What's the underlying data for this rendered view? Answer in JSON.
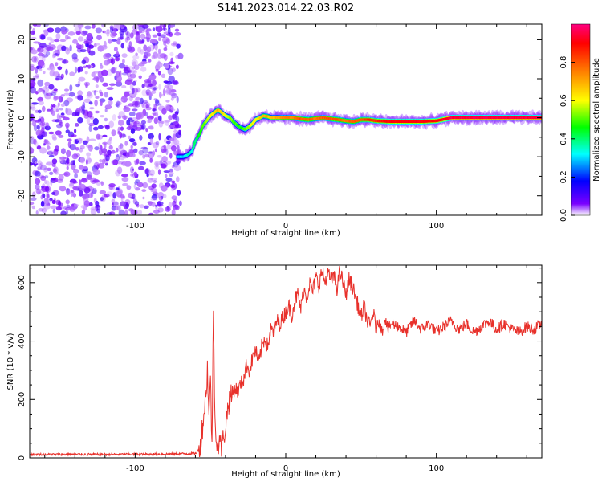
{
  "title": "S141.2023.014.22.03.R02",
  "chart_data": [
    {
      "type": "heatmap",
      "xlabel": "Height of straight line (km)",
      "ylabel": "Frequency (Hz)",
      "xlim": [
        -170,
        170
      ],
      "ylim": [
        -25,
        24
      ],
      "x_ticks": [
        -100,
        0,
        100
      ],
      "y_ticks": [
        -20,
        -10,
        0,
        10,
        20
      ],
      "noise_region_x": [
        -170,
        -73
      ],
      "ridge_x": [
        -72,
        -68,
        -65,
        -62,
        -60,
        -57,
        -55,
        -52,
        -50,
        -47,
        -45,
        -43,
        -40,
        -37,
        -35,
        -32,
        -30,
        -27,
        -25,
        -22,
        -20,
        -17,
        -15,
        -12,
        -10,
        -7,
        -5,
        -2,
        0,
        5,
        10,
        15,
        20,
        25,
        30,
        35,
        40,
        45,
        50,
        55,
        60,
        70,
        80,
        90,
        100,
        110,
        120,
        130,
        140,
        150,
        160,
        170
      ],
      "ridge_freq": [
        -10,
        -10,
        -9.5,
        -8.5,
        -6,
        -4,
        -2,
        -0.5,
        0.5,
        1.5,
        2,
        1.5,
        0.5,
        0,
        -1,
        -2,
        -2.5,
        -3,
        -2.5,
        -1.5,
        -0.5,
        0,
        0.5,
        0.3,
        0,
        0,
        0,
        0,
        0,
        0,
        -0.3,
        -0.5,
        -0.2,
        0,
        -0.3,
        -0.5,
        -0.8,
        -1,
        -0.5,
        -0.5,
        -0.8,
        -1,
        -1,
        -1,
        -0.8,
        0,
        0,
        0,
        0,
        0,
        0,
        0
      ],
      "ridge_amplitude": [
        0.3,
        0.3,
        0.35,
        0.35,
        0.4,
        0.45,
        0.5,
        0.55,
        0.6,
        0.65,
        0.7,
        0.65,
        0.6,
        0.55,
        0.5,
        0.5,
        0.45,
        0.5,
        0.55,
        0.6,
        0.6,
        0.65,
        0.7,
        0.7,
        0.65,
        0.7,
        0.7,
        0.75,
        0.75,
        0.75,
        0.8,
        0.8,
        0.75,
        0.8,
        0.8,
        0.8,
        0.75,
        0.8,
        0.8,
        0.85,
        0.85,
        0.9,
        0.9,
        0.9,
        0.9,
        0.95,
        0.95,
        0.95,
        0.95,
        0.95,
        0.95,
        0.95
      ],
      "colorbar": {
        "label": "Normalized spectral amplitude",
        "range": [
          0,
          1
        ],
        "ticks": [
          "0.0",
          "0.2",
          "0.4",
          "0.6",
          "0.8"
        ],
        "colormap": "hsv-rainbow",
        "stops": [
          "#ffffff",
          "#7a00ff",
          "#0000ff",
          "#00ffff",
          "#00ff00",
          "#ffff00",
          "#ff8000",
          "#ff0000",
          "#ff0080"
        ]
      }
    },
    {
      "type": "line",
      "xlabel": "Height of straight line (km)",
      "ylabel": "SNR (10 * v/v)",
      "xlim": [
        -170,
        170
      ],
      "ylim": [
        0,
        660
      ],
      "x_ticks": [
        -100,
        0,
        100
      ],
      "y_ticks": [
        0,
        200,
        400,
        600
      ],
      "color": "#e8312b",
      "series": [
        {
          "x": [
            -170,
            -120,
            -80,
            -60,
            -57,
            -55,
            -53,
            -52,
            -51,
            -50,
            -49,
            -48,
            -47,
            -46,
            -45,
            -44,
            -43,
            -42,
            -41,
            -40,
            -38,
            -36,
            -34,
            -32,
            -30,
            -28,
            -26,
            -24,
            -22,
            -20,
            -18,
            -16,
            -14,
            -12,
            -10,
            -8,
            -6,
            -4,
            -2,
            0,
            2,
            4,
            6,
            8,
            10,
            12,
            14,
            16,
            18,
            20,
            22,
            24,
            26,
            28,
            30,
            32,
            34,
            36,
            38,
            40,
            42,
            44,
            46,
            48,
            50,
            52,
            54,
            56,
            58,
            60,
            62,
            64,
            66,
            68,
            70,
            75,
            80,
            85,
            90,
            95,
            100,
            105,
            110,
            115,
            120,
            125,
            130,
            135,
            140,
            145,
            150,
            155,
            160,
            165,
            170
          ],
          "y": [
            12,
            12,
            13,
            15,
            30,
            120,
            220,
            310,
            150,
            260,
            60,
            500,
            120,
            80,
            40,
            70,
            30,
            50,
            80,
            110,
            190,
            210,
            240,
            230,
            250,
            270,
            320,
            300,
            340,
            370,
            320,
            380,
            410,
            380,
            440,
            430,
            470,
            460,
            480,
            500,
            520,
            490,
            540,
            560,
            510,
            580,
            550,
            600,
            570,
            620,
            590,
            640,
            600,
            630,
            610,
            620,
            580,
            640,
            600,
            560,
            610,
            590,
            560,
            520,
            480,
            520,
            470,
            450,
            500,
            440,
            470,
            430,
            480,
            440,
            460,
            450,
            430,
            470,
            440,
            460,
            430,
            450,
            470,
            440,
            460,
            430,
            450,
            470,
            440,
            460,
            440,
            430,
            450,
            440,
            460
          ]
        }
      ]
    }
  ]
}
